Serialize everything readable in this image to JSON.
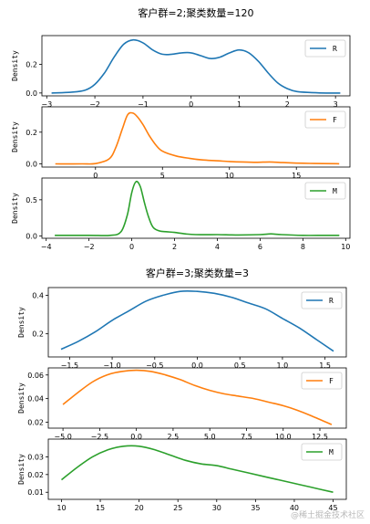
{
  "watermark": "@稀土掘金技术社区",
  "chart_data": [
    {
      "type": "line",
      "title": "客户群=2;聚类数量=120",
      "ylabel": "Density",
      "series": [
        {
          "name": "R",
          "color": "#1f77b4",
          "x": [
            -2.9,
            -2.5,
            -2.2,
            -2.0,
            -1.8,
            -1.6,
            -1.4,
            -1.2,
            -1.0,
            -0.8,
            -0.6,
            -0.4,
            -0.2,
            0.0,
            0.2,
            0.4,
            0.6,
            0.8,
            1.0,
            1.2,
            1.4,
            1.6,
            1.8,
            2.0,
            2.2,
            2.5,
            2.8,
            3.1
          ],
          "y": [
            0.0,
            0.005,
            0.02,
            0.06,
            0.14,
            0.25,
            0.34,
            0.37,
            0.35,
            0.3,
            0.27,
            0.27,
            0.28,
            0.28,
            0.26,
            0.24,
            0.25,
            0.28,
            0.3,
            0.28,
            0.22,
            0.14,
            0.07,
            0.03,
            0.01,
            0.003,
            0.0,
            0.0
          ]
        }
      ],
      "xlim": [
        -3.1,
        3.3
      ],
      "ylim": [
        -0.02,
        0.4
      ],
      "xticks": [
        -3,
        -2,
        -1,
        0,
        1,
        2,
        3
      ],
      "yticks": [
        0.0,
        0.2
      ],
      "ytick_labels": [
        "0.0",
        "0.2"
      ],
      "legend": "upper right"
    },
    {
      "type": "line",
      "title": "",
      "ylabel": "Density",
      "series": [
        {
          "name": "F",
          "color": "#ff7f0e",
          "x": [
            -3,
            -1,
            0,
            1,
            1.5,
            2,
            2.4,
            2.8,
            3.2,
            3.6,
            4,
            4.5,
            5,
            6,
            7,
            8,
            9,
            10,
            11,
            12,
            13,
            14,
            15,
            16,
            17,
            18.2
          ],
          "y": [
            0,
            0,
            0.002,
            0.03,
            0.1,
            0.22,
            0.31,
            0.32,
            0.29,
            0.24,
            0.18,
            0.12,
            0.08,
            0.05,
            0.035,
            0.025,
            0.02,
            0.015,
            0.012,
            0.01,
            0.012,
            0.008,
            0.005,
            0.003,
            0.002,
            0.001
          ]
        }
      ],
      "xlim": [
        -4,
        19
      ],
      "ylim": [
        -0.02,
        0.36
      ],
      "xticks": [
        0,
        5,
        10,
        15
      ],
      "yticks": [
        0.0,
        0.2
      ],
      "ytick_labels": [
        "0.0",
        "0.2"
      ],
      "legend": "upper right"
    },
    {
      "type": "line",
      "title": "",
      "ylabel": "Density",
      "series": [
        {
          "name": "M",
          "color": "#2ca02c",
          "x": [
            -3.6,
            -2,
            -1,
            -0.5,
            -0.2,
            0,
            0.2,
            0.4,
            0.6,
            0.8,
            1,
            1.3,
            1.6,
            2,
            2.5,
            3,
            4,
            5,
            6,
            6.5,
            7,
            8,
            9,
            9.7
          ],
          "y": [
            0.01,
            0.01,
            0.01,
            0.06,
            0.3,
            0.6,
            0.75,
            0.68,
            0.45,
            0.25,
            0.12,
            0.07,
            0.06,
            0.05,
            0.03,
            0.02,
            0.02,
            0.015,
            0.02,
            0.03,
            0.02,
            0.01,
            0.01,
            0.01
          ]
        }
      ],
      "xlim": [
        -4.2,
        10.2
      ],
      "ylim": [
        -0.03,
        0.8
      ],
      "xticks": [
        -4,
        -2,
        0,
        2,
        4,
        6,
        8,
        10
      ],
      "yticks": [
        0.0,
        0.5
      ],
      "ytick_labels": [
        "0.0",
        "0.5"
      ],
      "legend": "upper right"
    },
    {
      "type": "line",
      "title": "客户群=3;聚类数量=3",
      "ylabel": "Density",
      "series": [
        {
          "name": "R",
          "color": "#1f77b4",
          "x": [
            -1.6,
            -1.4,
            -1.2,
            -1.0,
            -0.8,
            -0.6,
            -0.4,
            -0.2,
            0.0,
            0.2,
            0.4,
            0.6,
            0.8,
            1.0,
            1.2,
            1.4,
            1.6
          ],
          "y": [
            0.12,
            0.16,
            0.21,
            0.27,
            0.32,
            0.37,
            0.4,
            0.42,
            0.42,
            0.41,
            0.39,
            0.36,
            0.33,
            0.28,
            0.23,
            0.17,
            0.11
          ]
        }
      ],
      "xlim": [
        -1.75,
        1.75
      ],
      "ylim": [
        0.08,
        0.44
      ],
      "xticks": [
        -1.5,
        -1.0,
        -0.5,
        0.0,
        0.5,
        1.0,
        1.5
      ],
      "yticks": [
        0.2,
        0.4
      ],
      "ytick_labels": [
        "0.2",
        "0.4"
      ],
      "legend": "upper right"
    },
    {
      "type": "line",
      "title": "",
      "ylabel": "Density",
      "series": [
        {
          "name": "F",
          "color": "#ff7f0e",
          "x": [
            -5,
            -4,
            -3,
            -2,
            -1,
            0,
            1,
            2,
            3,
            4,
            5,
            6,
            7,
            8,
            9,
            10,
            11,
            12,
            13.3
          ],
          "y": [
            0.035,
            0.045,
            0.054,
            0.06,
            0.063,
            0.064,
            0.063,
            0.06,
            0.056,
            0.051,
            0.047,
            0.044,
            0.042,
            0.04,
            0.037,
            0.034,
            0.03,
            0.025,
            0.018
          ]
        }
      ],
      "xlim": [
        -6.0,
        14.3
      ],
      "ylim": [
        0.015,
        0.066
      ],
      "xticks": [
        -5.0,
        -2.5,
        0.0,
        2.5,
        5.0,
        7.5,
        10.0,
        12.5
      ],
      "yticks": [
        0.02,
        0.04,
        0.06
      ],
      "ytick_labels": [
        "0.02",
        "0.04",
        "0.06"
      ],
      "legend": "upper right"
    },
    {
      "type": "line",
      "title": "",
      "ylabel": "Density",
      "series": [
        {
          "name": "M",
          "color": "#2ca02c",
          "x": [
            10,
            12,
            14,
            16,
            18,
            20,
            22,
            24,
            26,
            28,
            30,
            32,
            34,
            36,
            38,
            40,
            42,
            45
          ],
          "y": [
            0.017,
            0.024,
            0.03,
            0.034,
            0.036,
            0.036,
            0.034,
            0.031,
            0.028,
            0.026,
            0.025,
            0.023,
            0.021,
            0.019,
            0.017,
            0.015,
            0.013,
            0.01
          ]
        }
      ],
      "xlim": [
        8.3,
        46.7
      ],
      "ylim": [
        0.006,
        0.04
      ],
      "xticks": [
        10,
        15,
        20,
        25,
        30,
        35,
        40,
        45
      ],
      "yticks": [
        0.01,
        0.02,
        0.03
      ],
      "ytick_labels": [
        "0.01",
        "0.02",
        "0.03"
      ],
      "legend": "upper right"
    }
  ]
}
